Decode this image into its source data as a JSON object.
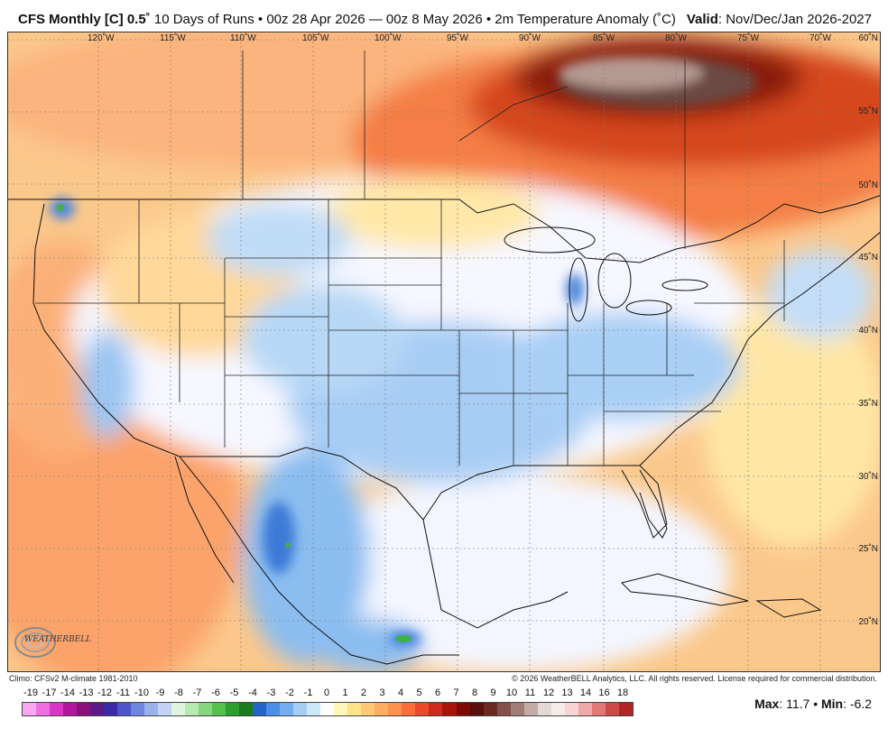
{
  "header": {
    "model": "CFS Monthly [C]",
    "resolution": "0.5˚",
    "description": "10 Days of Runs • 00z 28 Apr 2026 — 00z 8 May 2026 • 2m Temperature Anomaly (˚C)",
    "valid_label": "Valid",
    "valid_value": ": Nov/Dec/Jan 2026-2027"
  },
  "map": {
    "lon_labels": [
      "120˚W",
      "115˚W",
      "110˚W",
      "105˚W",
      "100˚W",
      "95˚W",
      "90˚W",
      "85˚W",
      "80˚W",
      "75˚W",
      "70˚W"
    ],
    "lat_labels": [
      "60˚N",
      "55˚N",
      "50˚N",
      "45˚N",
      "40˚N",
      "35˚N",
      "30˚N",
      "25˚N",
      "20˚N"
    ],
    "logo_text": "WEATHERBELL"
  },
  "footer": {
    "climo": "Climo: CFSv2 M-climate 1981-2010",
    "copyright": "© 2026 WeatherBELL Analytics, LLC. All rights reserved. License required for commercial distribution."
  },
  "colorbar": {
    "labels": [
      "-19",
      "-17",
      "-14",
      "-13",
      "-12",
      "-11",
      "-10",
      "-9",
      "-8",
      "-7",
      "-6",
      "-5",
      "-4",
      "-3",
      "-2",
      "-1",
      "0",
      "1",
      "2",
      "3",
      "4",
      "5",
      "6",
      "7",
      "8",
      "9",
      "10",
      "11",
      "12",
      "13",
      "14",
      "16",
      "18"
    ],
    "colors": [
      "#f8a8f0",
      "#ee6fe0",
      "#d935c6",
      "#b3159f",
      "#8a0f7c",
      "#5b1a86",
      "#3b2aa6",
      "#4e55c9",
      "#6f86de",
      "#9bb1ea",
      "#c3d3f3",
      "#dff5dd",
      "#b6eab0",
      "#84d77c",
      "#55c04c",
      "#2d9d2e",
      "#1b7b1f",
      "#2466c8",
      "#4a8ee8",
      "#73aff0",
      "#a5cdf5",
      "#cde7fa",
      "#ffffff",
      "#fff6b8",
      "#ffe38a",
      "#ffc977",
      "#ffad62",
      "#ff914e",
      "#fb6e3c",
      "#ea4a2a",
      "#cf2a1a",
      "#a81409",
      "#7d0a04",
      "#5a0f0a",
      "#6a2a23",
      "#835048",
      "#a27d77",
      "#c3aca7",
      "#e4d9d6",
      "#f5ecea",
      "#f8d4d4",
      "#f0a9a9",
      "#e27878",
      "#cd4a4a",
      "#b02424"
    ],
    "max_label": "Max",
    "max_value": ": 11.7",
    "min_label": "Min",
    "min_value": ": -6.2"
  }
}
